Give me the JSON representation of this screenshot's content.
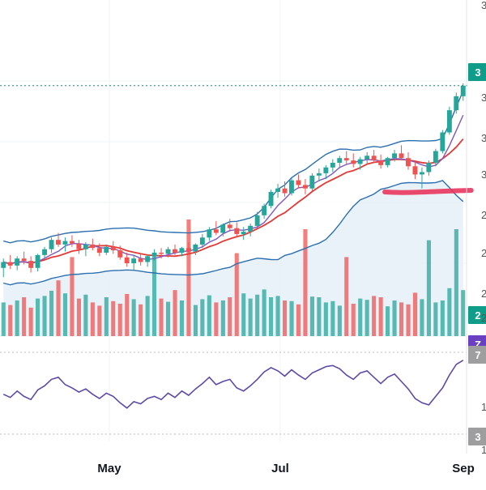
{
  "chart_data": {
    "type": "candlestick",
    "title": "",
    "x_ticks": [
      "May",
      "Jul",
      "Sep"
    ],
    "right_axis_partial_labels": [
      "3",
      "3",
      "3",
      "3",
      "2",
      "2",
      "2",
      "2",
      "1",
      "1",
      "3"
    ],
    "price_tags": [
      {
        "name": "last-price-tag",
        "text": "3",
        "color": "#0f9d8a"
      },
      {
        "name": "volume-tag",
        "text": "2",
        "color": "#0f9d8a"
      },
      {
        "name": "rsi-value-tag",
        "text": "Z",
        "color": "#6a3fc1"
      },
      {
        "name": "rsi-level-tag",
        "text": "7",
        "color": "#9e9e9e"
      },
      {
        "name": "rsi-low-tag",
        "text": "3",
        "color": "#9e9e9e"
      }
    ],
    "last_price_line": {
      "value": 37.4,
      "style": "dotted",
      "color": "#1a8a7d"
    },
    "price_range": [
      17.0,
      43.0
    ],
    "colors": {
      "up": "#26a69a",
      "down": "#ef5350",
      "bollinger": "#2a6fb0",
      "bollinger_fill": "#e3edf7",
      "ma_red": "#e53935",
      "ma_purple": "#7e57c2",
      "rsi": "#5e4aa8",
      "annotation": "#e8365d"
    },
    "candles": [
      [
        21.8,
        22.6,
        21.0,
        22.3
      ],
      [
        22.3,
        22.9,
        21.7,
        22.0
      ],
      [
        22.0,
        22.8,
        21.6,
        22.6
      ],
      [
        22.6,
        23.2,
        22.1,
        22.4
      ],
      [
        22.4,
        22.8,
        21.4,
        21.8
      ],
      [
        21.8,
        23.0,
        21.5,
        22.9
      ],
      [
        22.9,
        23.6,
        22.6,
        23.4
      ],
      [
        23.4,
        24.4,
        23.1,
        24.2
      ],
      [
        24.2,
        24.8,
        23.6,
        23.8
      ],
      [
        23.8,
        24.4,
        23.2,
        24.1
      ],
      [
        24.1,
        24.6,
        23.6,
        23.9
      ],
      [
        23.9,
        24.2,
        23.0,
        23.4
      ],
      [
        23.4,
        24.0,
        22.8,
        23.8
      ],
      [
        23.8,
        24.3,
        23.3,
        23.5
      ],
      [
        23.5,
        23.9,
        22.8,
        23.1
      ],
      [
        23.1,
        23.8,
        22.9,
        23.6
      ],
      [
        23.6,
        24.1,
        23.0,
        23.3
      ],
      [
        23.3,
        23.7,
        22.5,
        22.7
      ],
      [
        22.7,
        23.1,
        21.9,
        22.2
      ],
      [
        22.2,
        22.9,
        21.6,
        22.6
      ],
      [
        22.6,
        23.0,
        22.0,
        22.3
      ],
      [
        22.3,
        22.9,
        21.9,
        22.8
      ],
      [
        22.8,
        23.4,
        22.4,
        23.1
      ],
      [
        23.1,
        23.5,
        22.6,
        23.0
      ],
      [
        23.0,
        23.6,
        22.7,
        23.4
      ],
      [
        23.4,
        23.8,
        22.9,
        23.1
      ],
      [
        23.1,
        23.6,
        22.8,
        23.5
      ],
      [
        23.5,
        24.0,
        23.0,
        23.2
      ],
      [
        23.2,
        23.9,
        22.9,
        23.8
      ],
      [
        23.8,
        24.7,
        23.5,
        24.4
      ],
      [
        24.4,
        25.3,
        24.1,
        25.1
      ],
      [
        25.1,
        25.8,
        24.6,
        24.8
      ],
      [
        24.8,
        25.6,
        24.5,
        25.5
      ],
      [
        25.5,
        26.0,
        24.9,
        25.2
      ],
      [
        25.2,
        25.7,
        24.4,
        24.7
      ],
      [
        24.7,
        25.3,
        24.2,
        24.9
      ],
      [
        24.9,
        25.6,
        24.5,
        25.4
      ],
      [
        25.4,
        26.6,
        25.2,
        26.3
      ],
      [
        26.3,
        27.3,
        26.0,
        27.1
      ],
      [
        27.1,
        28.5,
        26.9,
        28.3
      ],
      [
        28.3,
        29.0,
        27.8,
        28.6
      ],
      [
        28.6,
        29.2,
        27.9,
        28.2
      ],
      [
        28.2,
        29.5,
        28.0,
        29.3
      ],
      [
        29.3,
        29.8,
        28.6,
        28.9
      ],
      [
        28.9,
        29.4,
        28.1,
        28.6
      ],
      [
        28.6,
        29.9,
        28.4,
        29.7
      ],
      [
        29.7,
        30.3,
        29.2,
        29.9
      ],
      [
        29.9,
        30.6,
        29.4,
        30.4
      ],
      [
        30.4,
        31.1,
        30.0,
        30.8
      ],
      [
        30.8,
        31.4,
        30.3,
        31.2
      ],
      [
        31.2,
        31.8,
        30.6,
        31.0
      ],
      [
        31.0,
        31.6,
        30.4,
        30.7
      ],
      [
        30.7,
        31.3,
        30.2,
        31.1
      ],
      [
        31.1,
        31.7,
        30.7,
        31.4
      ],
      [
        31.4,
        31.9,
        30.8,
        31.0
      ],
      [
        31.0,
        31.5,
        30.3,
        30.6
      ],
      [
        30.6,
        31.3,
        30.4,
        31.2
      ],
      [
        31.2,
        31.9,
        30.9,
        31.6
      ],
      [
        31.6,
        32.3,
        31.0,
        31.2
      ],
      [
        31.2,
        31.7,
        30.2,
        30.5
      ],
      [
        30.5,
        30.9,
        29.4,
        29.8
      ],
      [
        29.8,
        30.4,
        28.6,
        30.0
      ],
      [
        30.0,
        31.0,
        29.7,
        30.8
      ],
      [
        30.8,
        32.0,
        30.5,
        31.8
      ],
      [
        31.8,
        33.6,
        31.6,
        33.4
      ],
      [
        33.4,
        35.6,
        33.2,
        35.3
      ],
      [
        35.3,
        36.8,
        35.0,
        36.5
      ],
      [
        36.5,
        37.6,
        36.1,
        37.4
      ]
    ],
    "volumes": [
      52,
      48,
      55,
      60,
      44,
      58,
      62,
      70,
      86,
      66,
      55,
      58,
      64,
      52,
      47,
      60,
      54,
      50,
      65,
      57,
      49,
      62,
      46,
      58,
      53,
      71,
      55,
      60,
      48,
      57,
      63,
      52,
      55,
      60,
      49,
      66,
      58,
      64,
      72,
      60,
      62,
      55,
      54,
      49,
      56,
      61,
      60,
      52,
      54,
      47,
      62,
      50,
      58,
      56,
      62,
      60,
      46,
      55,
      52,
      49,
      67,
      57,
      60,
      52,
      55,
      74,
      66,
      71
    ],
    "volume_spikes": [
      {
        "index": 10,
        "value": 122
      },
      {
        "index": 22,
        "value": 128
      },
      {
        "index": 27,
        "value": 180
      },
      {
        "index": 34,
        "value": 128
      },
      {
        "index": 44,
        "value": 165
      },
      {
        "index": 50,
        "value": 122
      },
      {
        "index": 62,
        "value": 148
      },
      {
        "index": 66,
        "value": 165
      }
    ],
    "rsi": [
      52,
      49,
      55,
      50,
      47,
      56,
      60,
      66,
      68,
      61,
      58,
      54,
      57,
      52,
      48,
      53,
      50,
      44,
      39,
      45,
      43,
      48,
      50,
      47,
      53,
      49,
      55,
      51,
      57,
      62,
      68,
      61,
      64,
      66,
      58,
      55,
      60,
      66,
      73,
      77,
      74,
      69,
      75,
      70,
      66,
      72,
      75,
      78,
      79,
      76,
      70,
      66,
      72,
      74,
      68,
      62,
      68,
      71,
      64,
      57,
      48,
      44,
      42,
      50,
      58,
      70,
      80,
      84
    ],
    "rsi_range": [
      0,
      100
    ]
  }
}
